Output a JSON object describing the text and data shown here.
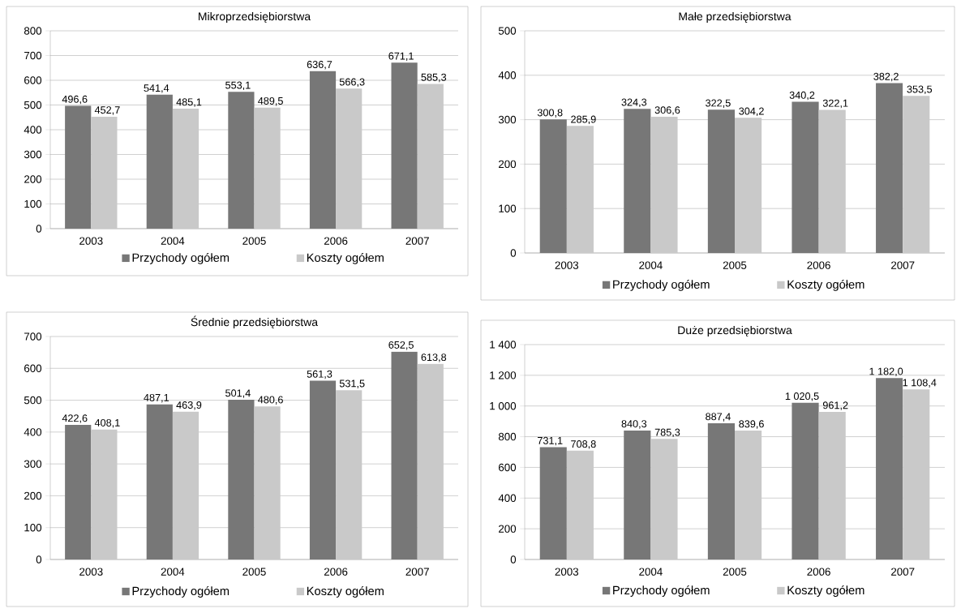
{
  "chart_data": [
    {
      "type": "bar",
      "title": "Mikroprzedsiębiorstwa",
      "categories": [
        "2003",
        "2004",
        "2005",
        "2006",
        "2007"
      ],
      "ylim": [
        0,
        800
      ],
      "yticks": [
        0,
        100,
        200,
        300,
        400,
        500,
        600,
        700,
        800
      ],
      "grid": "y",
      "legend": "bottom",
      "series": [
        {
          "name": "Przychody ogółem",
          "color": "#777777",
          "values": [
            496.6,
            541.4,
            553.1,
            636.7,
            671.1
          ],
          "value_labels": [
            "496,6",
            "541,4",
            "553,1",
            "636,7",
            "671,1"
          ]
        },
        {
          "name": "Koszty ogółem",
          "color": "#c9c9c9",
          "values": [
            452.7,
            485.1,
            489.5,
            566.3,
            585.3
          ],
          "value_labels": [
            "452,7",
            "485,1",
            "489,5",
            "566,3",
            "585,3"
          ]
        }
      ]
    },
    {
      "type": "bar",
      "title": "Małe przedsiębiorstwa",
      "categories": [
        "2003",
        "2004",
        "2005",
        "2006",
        "2007"
      ],
      "ylim": [
        0,
        500
      ],
      "yticks": [
        0,
        100,
        200,
        300,
        400,
        500
      ],
      "grid": "y",
      "legend": "bottom",
      "series": [
        {
          "name": "Przychody ogółem",
          "color": "#777777",
          "values": [
            300.8,
            324.3,
            322.5,
            340.2,
            382.2
          ],
          "value_labels": [
            "300,8",
            "324,3",
            "322,5",
            "340,2",
            "382,2"
          ]
        },
        {
          "name": "Koszty ogółem",
          "color": "#c9c9c9",
          "values": [
            285.9,
            306.6,
            304.2,
            322.1,
            353.5
          ],
          "value_labels": [
            "285,9",
            "306,6",
            "304,2",
            "322,1",
            "353,5"
          ]
        }
      ]
    },
    {
      "type": "bar",
      "title": "Średnie przedsiębiorstwa",
      "categories": [
        "2003",
        "2004",
        "2005",
        "2006",
        "2007"
      ],
      "ylim": [
        0,
        700
      ],
      "yticks": [
        0,
        100,
        200,
        300,
        400,
        500,
        600,
        700
      ],
      "grid": "y",
      "legend": "bottom",
      "series": [
        {
          "name": "Przychody ogółem",
          "color": "#777777",
          "values": [
            422.6,
            487.1,
            501.4,
            561.3,
            652.5
          ],
          "value_labels": [
            "422,6",
            "487,1",
            "501,4",
            "561,3",
            "652,5"
          ]
        },
        {
          "name": "Koszty ogółem",
          "color": "#c9c9c9",
          "values": [
            408.1,
            463.9,
            480.6,
            531.5,
            613.8
          ],
          "value_labels": [
            "408,1",
            "463,9",
            "480,6",
            "531,5",
            "613,8"
          ]
        }
      ]
    },
    {
      "type": "bar",
      "title": "Duże przedsiębiorstwa",
      "categories": [
        "2003",
        "2004",
        "2005",
        "2006",
        "2007"
      ],
      "ylim": [
        0,
        1400
      ],
      "yticks": [
        0,
        200,
        400,
        600,
        800,
        {
          "value": 1000,
          "label": "1 000"
        },
        {
          "value": 1200,
          "label": "1 200"
        },
        {
          "value": 1400,
          "label": "1 400"
        }
      ],
      "grid": "y",
      "legend": "bottom",
      "series": [
        {
          "name": "Przychody ogółem",
          "color": "#777777",
          "values": [
            731.1,
            840.3,
            887.4,
            1020.5,
            1182.0
          ],
          "value_labels": [
            "731,1",
            "840,3",
            "887,4",
            "1 020,5",
            "1 182,0"
          ]
        },
        {
          "name": "Koszty ogółem",
          "color": "#c9c9c9",
          "values": [
            708.8,
            785.3,
            839.6,
            961.2,
            1108.4
          ],
          "value_labels": [
            "708,8",
            "785,3",
            "839,6",
            "961,2",
            "1 108,4"
          ]
        }
      ]
    }
  ]
}
